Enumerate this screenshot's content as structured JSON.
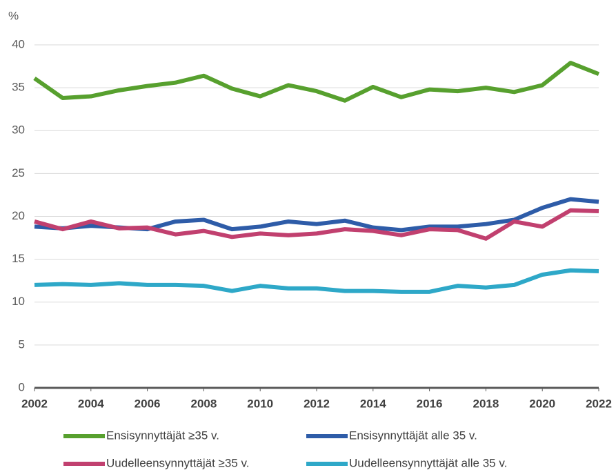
{
  "chart_data": {
    "type": "line",
    "y_label": "%",
    "x": [
      2002,
      2003,
      2004,
      2005,
      2006,
      2007,
      2008,
      2009,
      2010,
      2011,
      2012,
      2013,
      2014,
      2015,
      2016,
      2017,
      2018,
      2019,
      2020,
      2021,
      2022
    ],
    "xlim": [
      2002,
      2022
    ],
    "xticks": [
      2002,
      2004,
      2006,
      2008,
      2010,
      2012,
      2014,
      2016,
      2018,
      2020,
      2022
    ],
    "ylim": [
      0,
      40
    ],
    "yticks": [
      0,
      5,
      10,
      15,
      20,
      25,
      30,
      35,
      40
    ],
    "grid": true,
    "series": [
      {
        "name": "Ensisynnyttäjät ≥35 v.",
        "color": "#57a02e",
        "values": [
          36.1,
          33.8,
          34.0,
          34.7,
          35.2,
          35.6,
          36.4,
          34.9,
          34.0,
          35.3,
          34.6,
          33.5,
          35.1,
          33.9,
          34.8,
          34.6,
          35.0,
          34.5,
          35.3,
          37.9,
          36.6
        ]
      },
      {
        "name": "Ensisynnyttäjät alle 35 v.",
        "color": "#2e5ca8",
        "values": [
          18.8,
          18.6,
          18.9,
          18.7,
          18.5,
          19.4,
          19.6,
          18.5,
          18.8,
          19.4,
          19.1,
          19.5,
          18.7,
          18.4,
          18.8,
          18.8,
          19.1,
          19.6,
          21.0,
          22.0,
          21.7
        ]
      },
      {
        "name": "Uudelleensynnyttäjät  ≥35 v.",
        "color": "#c1406f",
        "values": [
          19.4,
          18.5,
          19.4,
          18.6,
          18.7,
          17.9,
          18.3,
          17.6,
          18.0,
          17.8,
          18.0,
          18.5,
          18.3,
          17.8,
          18.5,
          18.4,
          17.4,
          19.4,
          18.8,
          20.7,
          20.6
        ]
      },
      {
        "name": "Uudelleensynnyttäjät alle 35 v.",
        "color": "#2ea8c8",
        "values": [
          12.0,
          12.1,
          12.0,
          12.2,
          12.0,
          12.0,
          11.9,
          11.3,
          11.9,
          11.6,
          11.6,
          11.3,
          11.3,
          11.2,
          11.2,
          11.9,
          11.7,
          12.0,
          13.2,
          13.7,
          13.6
        ]
      }
    ]
  }
}
